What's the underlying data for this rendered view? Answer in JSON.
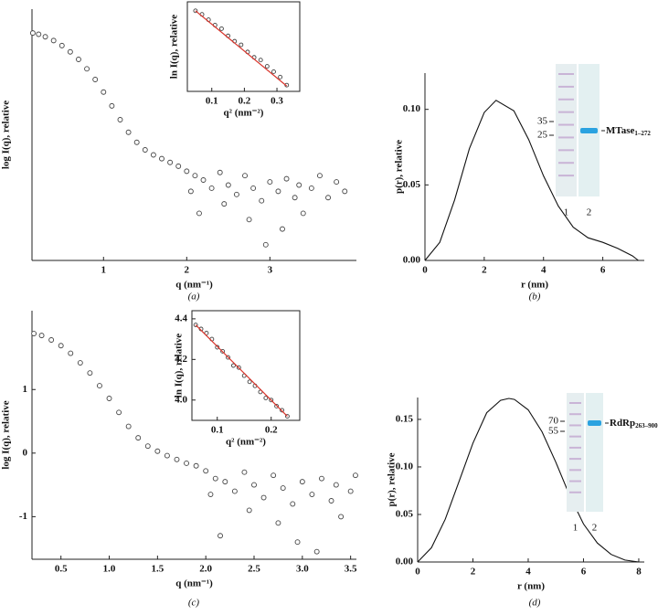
{
  "chart_data": [
    {
      "type": "scatter",
      "panel": "(a)",
      "x_label": "q (nm⁻¹)",
      "y_label": "log I(q), relative",
      "xlim": [
        0.14,
        4.04
      ],
      "ylim": [
        -1.7,
        2.3
      ],
      "xticks": [
        1,
        2,
        3
      ],
      "color": "#444",
      "x": [
        0.15,
        0.22,
        0.3,
        0.4,
        0.5,
        0.6,
        0.7,
        0.8,
        0.9,
        1.0,
        1.1,
        1.2,
        1.3,
        1.4,
        1.5,
        1.6,
        1.7,
        1.8,
        1.9,
        2.0,
        2.05,
        2.1,
        2.15,
        2.2,
        2.3,
        2.4,
        2.45,
        2.5,
        2.6,
        2.7,
        2.75,
        2.8,
        2.9,
        2.95,
        3.0,
        3.1,
        3.15,
        3.2,
        3.3,
        3.35,
        3.4,
        3.5,
        3.6,
        3.7,
        3.8,
        3.9
      ],
      "values": [
        1.92,
        1.9,
        1.86,
        1.8,
        1.72,
        1.62,
        1.5,
        1.35,
        1.18,
        0.98,
        0.76,
        0.54,
        0.34,
        0.18,
        0.06,
        -0.02,
        -0.08,
        -0.14,
        -0.2,
        -0.28,
        -0.6,
        -0.35,
        -0.95,
        -0.42,
        -0.55,
        -0.3,
        -0.8,
        -0.5,
        -0.65,
        -0.35,
        -1.05,
        -0.55,
        -0.75,
        -1.45,
        -0.45,
        -0.6,
        -1.2,
        -0.4,
        -0.7,
        -0.5,
        -0.95,
        -0.55,
        -0.35,
        -0.7,
        -0.45,
        -0.6
      ]
    },
    {
      "type": "scatter",
      "x_label": "q² (nm⁻²)",
      "y_label": "ln I(q), relative",
      "xlim": [
        0.025,
        0.37
      ],
      "ylim": [
        0,
        1
      ],
      "xticks": [
        0.1,
        0.2,
        0.3
      ],
      "color": "#444",
      "x": [
        0.05,
        0.07,
        0.09,
        0.11,
        0.13,
        0.15,
        0.17,
        0.19,
        0.21,
        0.23,
        0.25,
        0.27,
        0.29,
        0.31,
        0.33
      ],
      "values": [
        0.9,
        0.86,
        0.8,
        0.74,
        0.7,
        0.62,
        0.56,
        0.52,
        0.44,
        0.38,
        0.35,
        0.28,
        0.22,
        0.16,
        0.07
      ],
      "fit": {
        "x": [
          0.05,
          0.33
        ],
        "values": [
          0.9,
          0.06
        ],
        "color": "#d9342b"
      }
    },
    {
      "type": "line",
      "panel": "(b)",
      "x_label": "r (nm)",
      "y_label": "p(r), relative",
      "xlim": [
        0,
        7.4
      ],
      "ylim": [
        0,
        0.124
      ],
      "color": "#111",
      "xticks": [
        0,
        2,
        4,
        6
      ],
      "yticks": [
        {
          "value": 0,
          "label": "0.00"
        },
        0.05,
        {
          "value": 0.1,
          "label": "0.10"
        }
      ],
      "x": [
        0,
        0.5,
        1,
        1.5,
        2,
        2.4,
        3,
        3.5,
        4,
        4.5,
        5,
        5.5,
        6,
        6.5,
        7,
        7.2
      ],
      "values": [
        0,
        0.012,
        0.04,
        0.074,
        0.098,
        0.106,
        0.099,
        0.08,
        0.056,
        0.036,
        0.022,
        0.015,
        0.012,
        0.008,
        0.003,
        0
      ],
      "gel": {
        "markers": [
          35,
          25
        ],
        "band_label": "MTase",
        "band_subscript": "1–272",
        "lanes": [
          "1",
          "2"
        ]
      }
    },
    {
      "type": "scatter",
      "panel": "(c)",
      "x_label": "q (nm⁻¹)",
      "y_label": "log I(q), relative",
      "xlim": [
        0.2,
        3.56
      ],
      "ylim": [
        -1.67,
        2.24
      ],
      "color": "#444",
      "xticks": [
        0.5,
        {
          "value": 1,
          "label": "1.0"
        },
        1.5,
        {
          "value": 2,
          "label": "2.0"
        },
        2.5,
        {
          "value": 3,
          "label": "3.0"
        },
        3.5
      ],
      "yticks": [
        -1,
        0,
        1
      ],
      "x": [
        0.22,
        0.3,
        0.4,
        0.5,
        0.6,
        0.7,
        0.8,
        0.9,
        1.0,
        1.1,
        1.2,
        1.3,
        1.4,
        1.5,
        1.6,
        1.7,
        1.8,
        1.9,
        2.0,
        2.05,
        2.1,
        2.15,
        2.2,
        2.3,
        2.4,
        2.45,
        2.5,
        2.6,
        2.7,
        2.75,
        2.8,
        2.9,
        2.95,
        3.0,
        3.1,
        3.15,
        3.2,
        3.3,
        3.35,
        3.4,
        3.5,
        3.55
      ],
      "values": [
        1.88,
        1.85,
        1.78,
        1.69,
        1.57,
        1.42,
        1.26,
        1.06,
        0.86,
        0.64,
        0.42,
        0.24,
        0.11,
        0.03,
        -0.04,
        -0.1,
        -0.16,
        -0.2,
        -0.28,
        -0.65,
        -0.4,
        -1.3,
        -0.45,
        -0.6,
        -0.3,
        -0.9,
        -0.5,
        -0.7,
        -0.35,
        -1.1,
        -0.55,
        -0.8,
        -1.4,
        -0.45,
        -0.65,
        -1.55,
        -0.4,
        -0.75,
        -0.5,
        -1.0,
        -0.6,
        -0.35
      ]
    },
    {
      "type": "scatter",
      "x_label": "q² (nm⁻²)",
      "y_label": "ln I(q), relative",
      "xlim": [
        0.053,
        0.253
      ],
      "ylim": [
        3.9,
        4.44
      ],
      "color": "#444",
      "xticks": [
        0.1,
        0.2
      ],
      "yticks": [
        {
          "value": 4,
          "label": "4.0"
        },
        4.2,
        4.4
      ],
      "x": [
        0.06,
        0.07,
        0.08,
        0.09,
        0.1,
        0.11,
        0.12,
        0.13,
        0.14,
        0.15,
        0.16,
        0.17,
        0.18,
        0.19,
        0.2,
        0.21,
        0.22,
        0.23
      ],
      "values": [
        4.37,
        4.35,
        4.33,
        4.3,
        4.26,
        4.24,
        4.21,
        4.17,
        4.16,
        4.12,
        4.09,
        4.07,
        4.04,
        4.01,
        4.0,
        3.97,
        3.95,
        3.92
      ],
      "fit": {
        "x": [
          0.06,
          0.23
        ],
        "values": [
          4.37,
          3.92
        ],
        "color": "#d9342b"
      }
    },
    {
      "type": "line",
      "panel": "(d)",
      "x_label": "r (nm)",
      "y_label": "p(r), relative",
      "xlim": [
        0,
        8.2
      ],
      "ylim": [
        0,
        0.173
      ],
      "color": "#111",
      "xticks": [
        0,
        2,
        4,
        6,
        8
      ],
      "yticks": [
        {
          "value": 0,
          "label": "0.00"
        },
        0.05,
        {
          "value": 0.1,
          "label": "0.10"
        },
        0.15
      ],
      "x": [
        0,
        0.5,
        1,
        1.5,
        2,
        2.5,
        3,
        3.3,
        3.5,
        4,
        4.5,
        5,
        5.5,
        6,
        6.5,
        7,
        7.5,
        8
      ],
      "values": [
        0,
        0.015,
        0.045,
        0.085,
        0.125,
        0.157,
        0.17,
        0.172,
        0.171,
        0.16,
        0.137,
        0.105,
        0.07,
        0.04,
        0.02,
        0.008,
        0.002,
        0
      ],
      "gel": {
        "markers": [
          70,
          55
        ],
        "band_label": "RdRp",
        "band_subscript": "263–900",
        "lanes": [
          "1",
          "2"
        ]
      }
    }
  ]
}
